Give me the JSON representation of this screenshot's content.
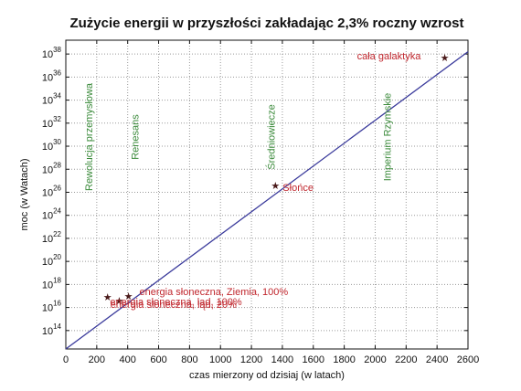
{
  "colors": {
    "line": "#3b3b9c",
    "grid": "#9a9a9a",
    "era_text": "#3a8a3a",
    "point_label": "#c0262d",
    "marker": "#4a1a1a"
  },
  "chart_data": {
    "type": "line",
    "title": "Zużycie energii w przyszłości zakładając 2,3% roczny wzrost",
    "xlabel": "czas mierzony od dzisiaj (w latach)",
    "ylabel": "moc (w Watach)",
    "xlim": [
      0,
      2600
    ],
    "ylim_exponent": [
      12.4,
      39.2
    ],
    "y_scale": "log10",
    "grid": true,
    "x_ticks": [
      "0",
      "200",
      "400",
      "600",
      "800",
      "1000",
      "1200",
      "1400",
      "1600",
      "1800",
      "2000",
      "2200",
      "2400",
      "2600"
    ],
    "x_tick_values": [
      0,
      200,
      400,
      600,
      800,
      1000,
      1200,
      1400,
      1600,
      1800,
      2000,
      2200,
      2400,
      2600
    ],
    "y_tick_exponents": [
      14,
      16,
      18,
      20,
      22,
      24,
      26,
      28,
      30,
      32,
      34,
      36,
      38
    ],
    "y_tick_base": "10",
    "series": [
      {
        "x": [
          0,
          2600
        ],
        "y_exponent": [
          12.4,
          38.2
        ]
      }
    ],
    "points": [
      {
        "x": 270,
        "y_exponent": 16.9,
        "label": "energia słoneczna, ląd, 20%"
      },
      {
        "x": 345,
        "y_exponent": 16.6,
        "label": "energia słoneczna, ląd, 100%"
      },
      {
        "x": 405,
        "y_exponent": 17.0,
        "label": "energia słoneczna, Ziemia, 100%"
      },
      {
        "x": 1355,
        "y_exponent": 26.6,
        "label": "Słońce"
      },
      {
        "x": 2450,
        "y_exponent": 37.7,
        "label": "cała galaktyka"
      }
    ],
    "eras": [
      {
        "x": 2100,
        "label": "Imperium Rzymskie"
      },
      {
        "x": 1350,
        "label": "Średniowiecze"
      },
      {
        "x": 470,
        "label": "Renesans"
      },
      {
        "x": 170,
        "label": "Rewolucja przemysłowa"
      }
    ]
  }
}
